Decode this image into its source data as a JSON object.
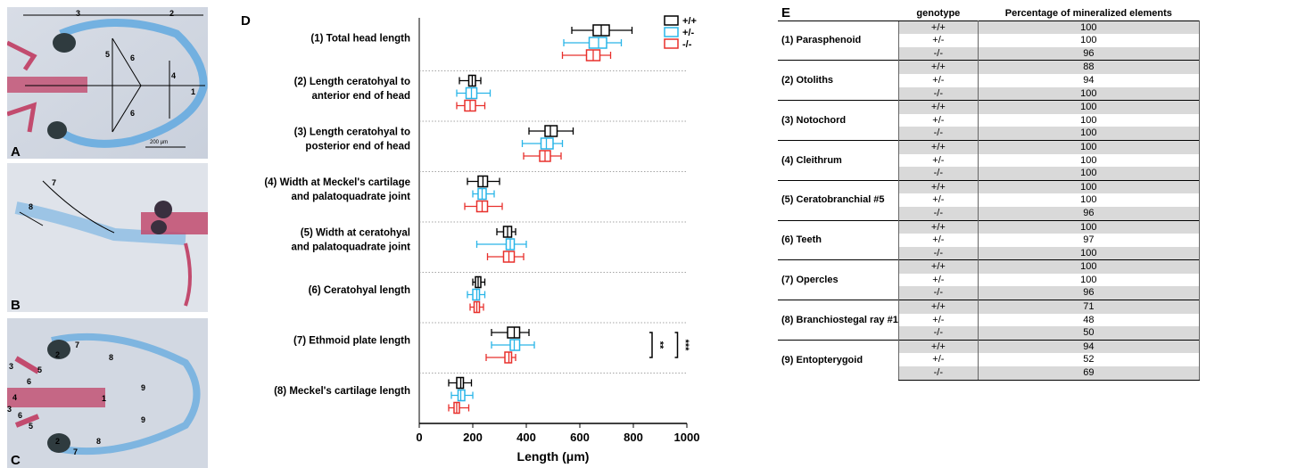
{
  "panels": {
    "A": {
      "letter": "A",
      "numbers": [
        "3",
        "2",
        "5",
        "6",
        "4",
        "1",
        "6"
      ],
      "scale_label": "200 µm"
    },
    "B": {
      "letter": "B",
      "numbers": [
        "7",
        "8"
      ]
    },
    "C": {
      "letter": "C",
      "numbers": [
        "7",
        "8",
        "2",
        "3",
        "5",
        "6",
        "1",
        "9",
        "4",
        "3",
        "6",
        "5",
        "9",
        "2",
        "8",
        "7"
      ]
    }
  },
  "chart_data": {
    "type": "boxplot",
    "panel_letter": "D",
    "xlabel": "Length (μm)",
    "xlim": [
      0,
      1000
    ],
    "xticks": [
      "0",
      "200",
      "400",
      "600",
      "800",
      "1000"
    ],
    "legend": {
      "placement": "top-right",
      "entries": [
        {
          "name": "+/+",
          "color": "#000000"
        },
        {
          "name": "+/-",
          "color": "#29b5e8"
        },
        {
          "name": "-/-",
          "color": "#e8302c"
        }
      ]
    },
    "categories": [
      {
        "label": [
          "(1) Total head length"
        ],
        "boxes": [
          [
            570,
            650,
            680,
            710,
            795
          ],
          [
            540,
            635,
            670,
            700,
            755
          ],
          [
            535,
            625,
            650,
            675,
            715
          ]
        ]
      },
      {
        "label": [
          "(2) Length ceratohyal to",
          "anterior end of head"
        ],
        "boxes": [
          [
            150,
            185,
            198,
            210,
            230
          ],
          [
            140,
            175,
            195,
            215,
            265
          ],
          [
            140,
            170,
            190,
            210,
            245
          ]
        ]
      },
      {
        "label": [
          "(3) Length ceratohyal to",
          "posterior end of head"
        ],
        "boxes": [
          [
            410,
            470,
            490,
            515,
            575
          ],
          [
            385,
            455,
            475,
            500,
            535
          ],
          [
            390,
            450,
            470,
            490,
            530
          ]
        ]
      },
      {
        "label": [
          "(4) Width at Meckel's cartilage",
          "and palatoquadrate joint"
        ],
        "boxes": [
          [
            180,
            220,
            238,
            255,
            300
          ],
          [
            200,
            220,
            235,
            250,
            280
          ],
          [
            170,
            215,
            235,
            255,
            310
          ]
        ]
      },
      {
        "label": [
          "(5) Width at ceratohyal",
          "and palatoquadrate joint"
        ],
        "boxes": [
          [
            290,
            315,
            330,
            345,
            360
          ],
          [
            215,
            325,
            340,
            355,
            400
          ],
          [
            255,
            315,
            335,
            355,
            390
          ]
        ]
      },
      {
        "label": [
          "(6) Ceratohyal length"
        ],
        "boxes": [
          [
            200,
            210,
            220,
            230,
            245
          ],
          [
            180,
            200,
            215,
            225,
            245
          ],
          [
            190,
            205,
            215,
            225,
            240
          ]
        ]
      },
      {
        "label": [
          "(7) Ethmoid plate length"
        ],
        "boxes": [
          [
            270,
            330,
            355,
            375,
            410
          ],
          [
            270,
            340,
            355,
            375,
            430
          ],
          [
            250,
            320,
            335,
            345,
            360
          ]
        ]
      },
      {
        "label": [
          "(8) Meckel's cartilage length"
        ],
        "boxes": [
          [
            110,
            140,
            155,
            165,
            195
          ],
          [
            120,
            145,
            155,
            170,
            200
          ],
          [
            110,
            130,
            140,
            150,
            185
          ]
        ]
      }
    ],
    "significance": [
      {
        "text": "**"
      },
      {
        "text": "***"
      }
    ]
  },
  "table": {
    "panel_letter": "E",
    "headers": {
      "genotype": "genotype",
      "percentage": "Percentage of mineralized elements"
    },
    "groups": [
      {
        "element": "(1) Parasphenoid",
        "rows": [
          [
            "+/+",
            "100"
          ],
          [
            "+/-",
            "100"
          ],
          [
            "-/-",
            "96"
          ]
        ]
      },
      {
        "element": "(2) Otoliths",
        "rows": [
          [
            "+/+",
            "88"
          ],
          [
            "+/-",
            "94"
          ],
          [
            "-/-",
            "100"
          ]
        ]
      },
      {
        "element": "(3) Notochord",
        "rows": [
          [
            "+/+",
            "100"
          ],
          [
            "+/-",
            "100"
          ],
          [
            "-/-",
            "100"
          ]
        ]
      },
      {
        "element": "(4) Cleithrum",
        "rows": [
          [
            "+/+",
            "100"
          ],
          [
            "+/-",
            "100"
          ],
          [
            "-/-",
            "100"
          ]
        ]
      },
      {
        "element": "(5) Ceratobranchial  #5",
        "rows": [
          [
            "+/+",
            "100"
          ],
          [
            "+/-",
            "100"
          ],
          [
            "-/-",
            "96"
          ]
        ]
      },
      {
        "element": "(6) Teeth",
        "rows": [
          [
            "+/+",
            "100"
          ],
          [
            "+/-",
            "97"
          ],
          [
            "-/-",
            "100"
          ]
        ]
      },
      {
        "element": "(7) Opercles",
        "rows": [
          [
            "+/+",
            "100"
          ],
          [
            "+/-",
            "100"
          ],
          [
            "-/-",
            "96"
          ]
        ]
      },
      {
        "element": "(8) Branchiostegal  ray #1",
        "rows": [
          [
            "+/+",
            "71"
          ],
          [
            "+/-",
            "48"
          ],
          [
            "-/-",
            "50"
          ]
        ]
      },
      {
        "element": "(9) Entopterygoid",
        "rows": [
          [
            "+/+",
            "94"
          ],
          [
            "+/-",
            "52"
          ],
          [
            "-/-",
            "69"
          ]
        ]
      }
    ]
  }
}
